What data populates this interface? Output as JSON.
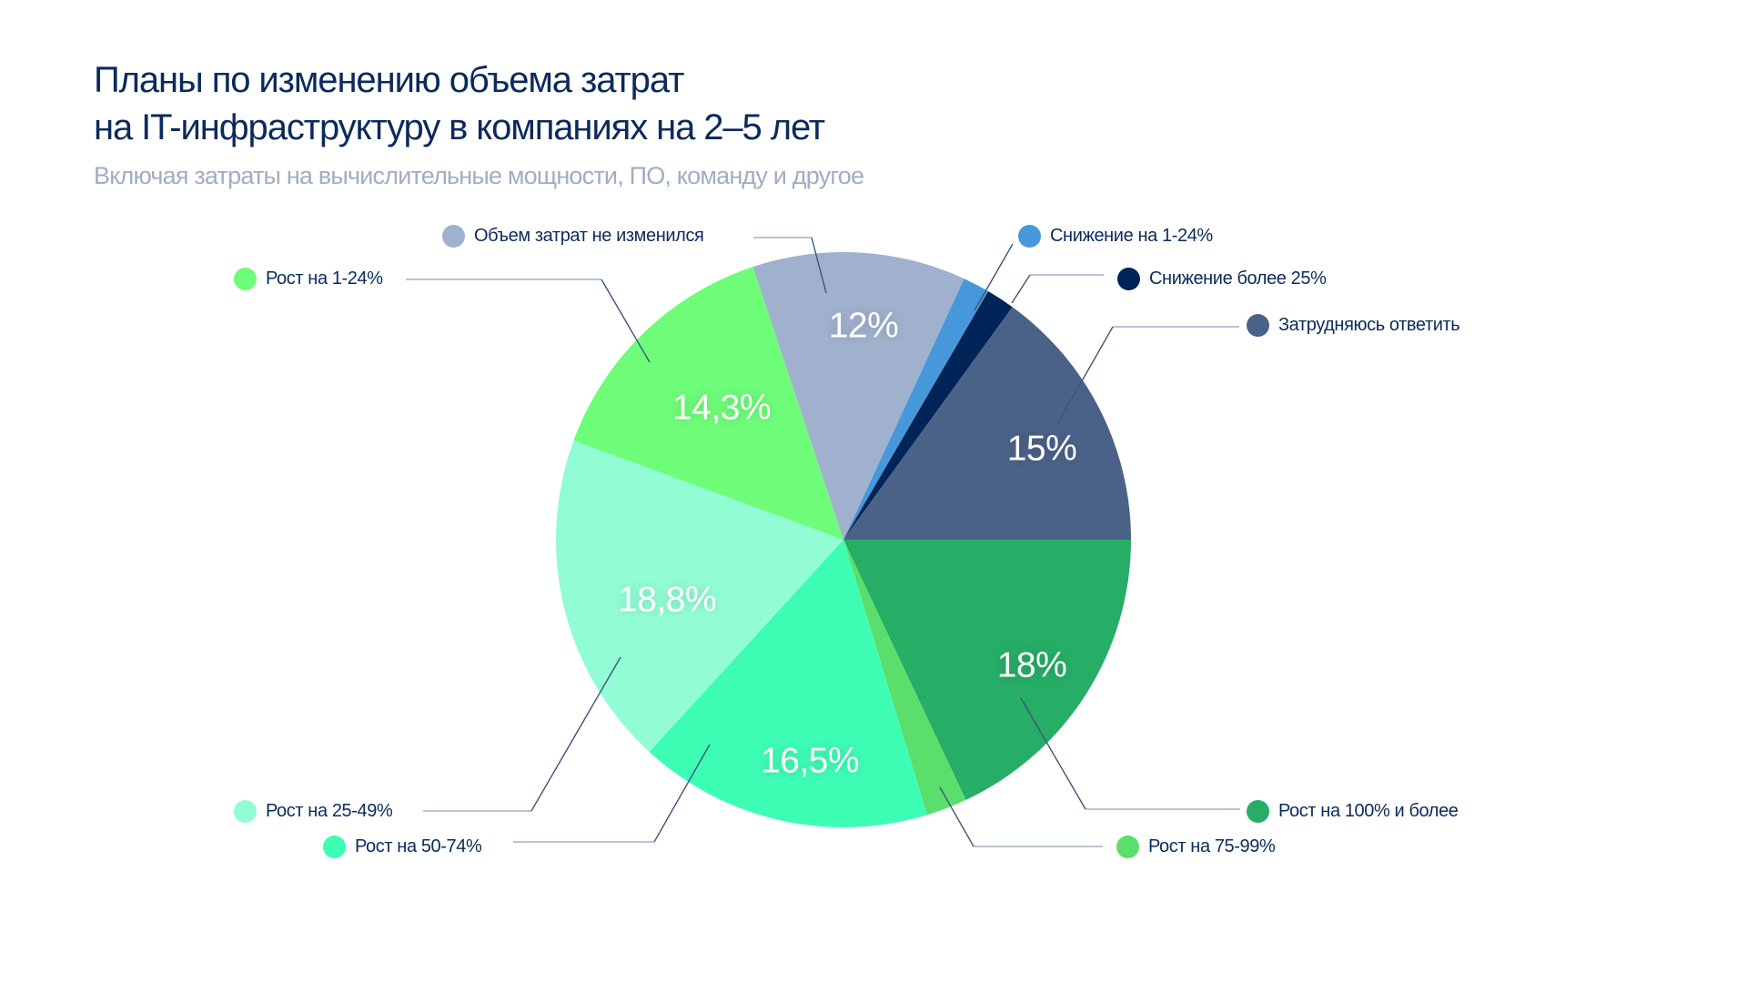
{
  "header": {
    "title_line1": "Планы по изменению объема затрат",
    "title_line2": "на IT-инфраструктуру в компаниях на 2–5 лет",
    "subtitle": "Включая затраты на вычислительные мощности, ПО, команду и другое"
  },
  "chart_data": {
    "type": "pie",
    "title": "Планы по изменению объема затрат на IT-инфраструктуру в компаниях на 2–5 лет",
    "subtitle": "Включая затраты на вычислительные мощности, ПО, команду и другое",
    "unit": "%",
    "start_angle": "3 o'clock, clockwise",
    "slices": [
      {
        "name": "Рост на 100% и более",
        "value": 18,
        "label": "18%",
        "color": "#26ad66"
      },
      {
        "name": "Рост на 75-99%",
        "value": 2.3,
        "label": "",
        "color": "#5ade6c"
      },
      {
        "name": "Рост на 50-74%",
        "value": 16.5,
        "label": "16,5%",
        "color": "#3dfdb5"
      },
      {
        "name": "Рост на 25-49%",
        "value": 18.8,
        "label": "18,8%",
        "color": "#92fdd5"
      },
      {
        "name": "Рост на 1-24%",
        "value": 14.3,
        "label": "14,3%",
        "color": "#6efd78"
      },
      {
        "name": "Объем затрат не изменился",
        "value": 12,
        "label": "12%",
        "color": "#9fb1cd"
      },
      {
        "name": "Снижение на 1-24%",
        "value": 1.5,
        "label": "",
        "color": "#4698db"
      },
      {
        "name": "Снижение более 25%",
        "value": 1.6,
        "label": "",
        "color": "#002457"
      },
      {
        "name": "Затрудняюсь ответить",
        "value": 15,
        "label": "15%",
        "color": "#4a6288"
      }
    ]
  },
  "legend": [
    {
      "label": "Объем затрат не изменился",
      "color": "#9fb1cd"
    },
    {
      "label": "Снижение на 1-24%",
      "color": "#4698db"
    },
    {
      "label": "Рост на 1-24%",
      "color": "#6efd78"
    },
    {
      "label": "Снижение более 25%",
      "color": "#002457"
    },
    {
      "label": "Затрудняюсь ответить",
      "color": "#4a6288"
    },
    {
      "label": "Рост на 25-49%",
      "color": "#92fdd5"
    },
    {
      "label": "Рост на 100% и более",
      "color": "#26ad66"
    },
    {
      "label": "Рост на 50-74%",
      "color": "#3dfdb5"
    },
    {
      "label": "Рост на 75-99%",
      "color": "#5ade6c"
    }
  ]
}
